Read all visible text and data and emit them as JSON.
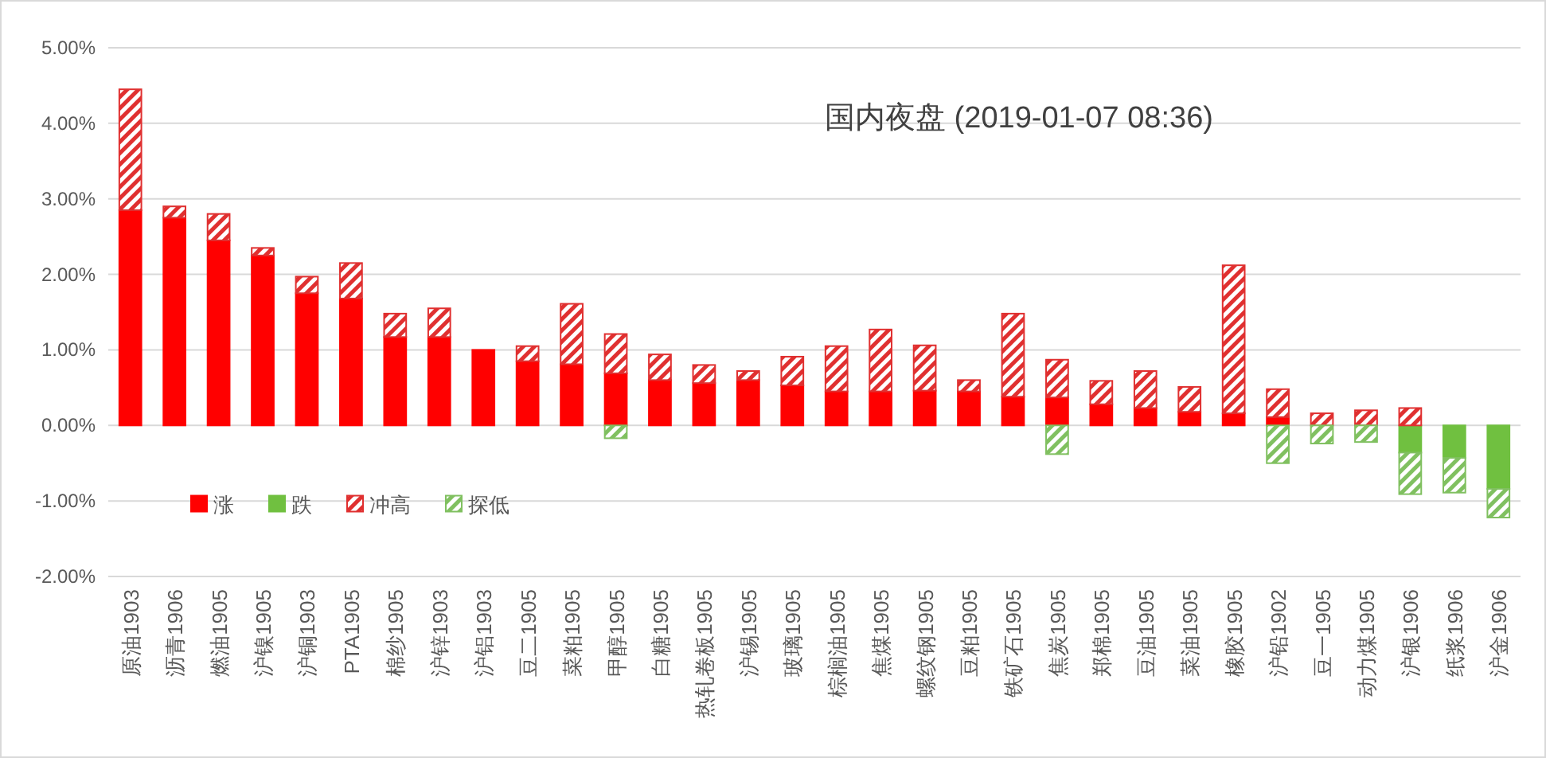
{
  "chart_data": {
    "type": "bar",
    "title": "国内夜盘 (2019-01-07 08:36)",
    "stacked": true,
    "grid": "y",
    "legend": "bottom left",
    "categories": [
      "原油1903",
      "沥青1906",
      "燃油1905",
      "沪镍1905",
      "沪铜1903",
      "PTA1905",
      "棉纱1905",
      "沪锌1903",
      "沪铝1903",
      "豆二1905",
      "菜粕1905",
      "甲醇1905",
      "白糖1905",
      "热轧卷板1905",
      "沪锡1905",
      "玻璃1905",
      "棕榈油1905",
      "焦煤1905",
      "螺纹钢1905",
      "豆粕1905",
      "铁矿石1905",
      "焦炭1905",
      "郑棉1905",
      "豆油1905",
      "菜油1905",
      "橡胶1905",
      "沪铅1902",
      "豆一1905",
      "动力煤1905",
      "沪银1906",
      "纸浆1906",
      "沪金1906"
    ],
    "ylim": [
      -2,
      5
    ],
    "yticks": [
      {
        "value": -2,
        "label": "-2.00%"
      },
      {
        "value": -1,
        "label": "-1.00%"
      },
      {
        "value": 0,
        "label": "0.00%"
      },
      {
        "value": 1,
        "label": "1.00%"
      },
      {
        "value": 2,
        "label": "2.00%"
      },
      {
        "value": 3,
        "label": "3.00%"
      },
      {
        "value": 4,
        "label": "4.00%"
      },
      {
        "value": 5,
        "label": "5.00%"
      }
    ],
    "series": [
      {
        "name": "涨",
        "color": "#ff0000",
        "values": [
          2.85,
          2.75,
          2.45,
          2.25,
          1.75,
          1.68,
          1.17,
          1.17,
          1.0,
          0.85,
          0.81,
          0.69,
          0.6,
          0.56,
          0.6,
          0.53,
          0.45,
          0.45,
          0.46,
          0.45,
          0.38,
          0.37,
          0.28,
          0.23,
          0.18,
          0.16,
          0.11,
          0,
          0,
          0,
          0,
          0
        ]
      },
      {
        "name": "跌",
        "color": "#70c040",
        "values": [
          0,
          0,
          0,
          0,
          0,
          0,
          0,
          0,
          0,
          0,
          0,
          0,
          0,
          0,
          0,
          0,
          0,
          0,
          0,
          0,
          0,
          0,
          0,
          0,
          0,
          0,
          0,
          0,
          0,
          -0.36,
          -0.43,
          -0.84
        ]
      },
      {
        "name": "冲高",
        "color": "#e03030",
        "values": [
          1.6,
          0.15,
          0.35,
          0.1,
          0.22,
          0.47,
          0.31,
          0.38,
          0,
          0.2,
          0.8,
          0.52,
          0.34,
          0.24,
          0.12,
          0.38,
          0.6,
          0.82,
          0.6,
          0.15,
          1.1,
          0.5,
          0.31,
          0.49,
          0.33,
          1.96,
          0.37,
          0.16,
          0.2,
          0.23,
          0,
          0
        ]
      },
      {
        "name": "探低",
        "color": "#80c060",
        "values": [
          0,
          0,
          0,
          0,
          0,
          0,
          0,
          0,
          0,
          0,
          0,
          -0.17,
          0,
          0,
          0,
          0,
          0,
          0,
          0,
          0,
          0,
          -0.38,
          0,
          0,
          0,
          0,
          -0.5,
          -0.24,
          -0.22,
          -0.55,
          -0.46,
          -0.38
        ]
      }
    ]
  }
}
